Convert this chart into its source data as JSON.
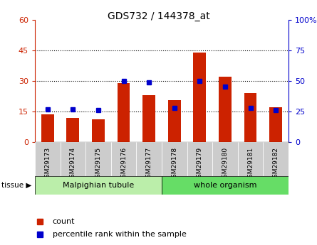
{
  "title": "GDS732 / 144378_at",
  "samples": [
    "GSM29173",
    "GSM29174",
    "GSM29175",
    "GSM29176",
    "GSM29177",
    "GSM29178",
    "GSM29179",
    "GSM29180",
    "GSM29181",
    "GSM29182"
  ],
  "counts": [
    13.5,
    12.0,
    11.0,
    29.0,
    23.0,
    20.5,
    44.0,
    32.0,
    24.0,
    17.0
  ],
  "percentiles": [
    27,
    27,
    26,
    50,
    49,
    28,
    50,
    45,
    28,
    26
  ],
  "bar_color": "#cc2200",
  "dot_color": "#0000cc",
  "ylim_left": [
    0,
    60
  ],
  "ylim_right": [
    0,
    100
  ],
  "yticks_left": [
    0,
    15,
    30,
    45,
    60
  ],
  "yticks_right": [
    0,
    25,
    50,
    75,
    100
  ],
  "ytick_labels_right": [
    "0",
    "25",
    "50",
    "75",
    "100%"
  ],
  "tissue_groups": [
    {
      "label": "Malpighian tubule",
      "start": 0,
      "end": 4,
      "color": "#bbeeaa"
    },
    {
      "label": "whole organism",
      "start": 5,
      "end": 9,
      "color": "#66dd66"
    }
  ],
  "legend_count_label": "count",
  "legend_pct_label": "percentile rank within the sample",
  "tissue_label": "tissue",
  "background_color": "#ffffff",
  "bar_width": 0.5,
  "xticklabel_bg": "#cccccc"
}
